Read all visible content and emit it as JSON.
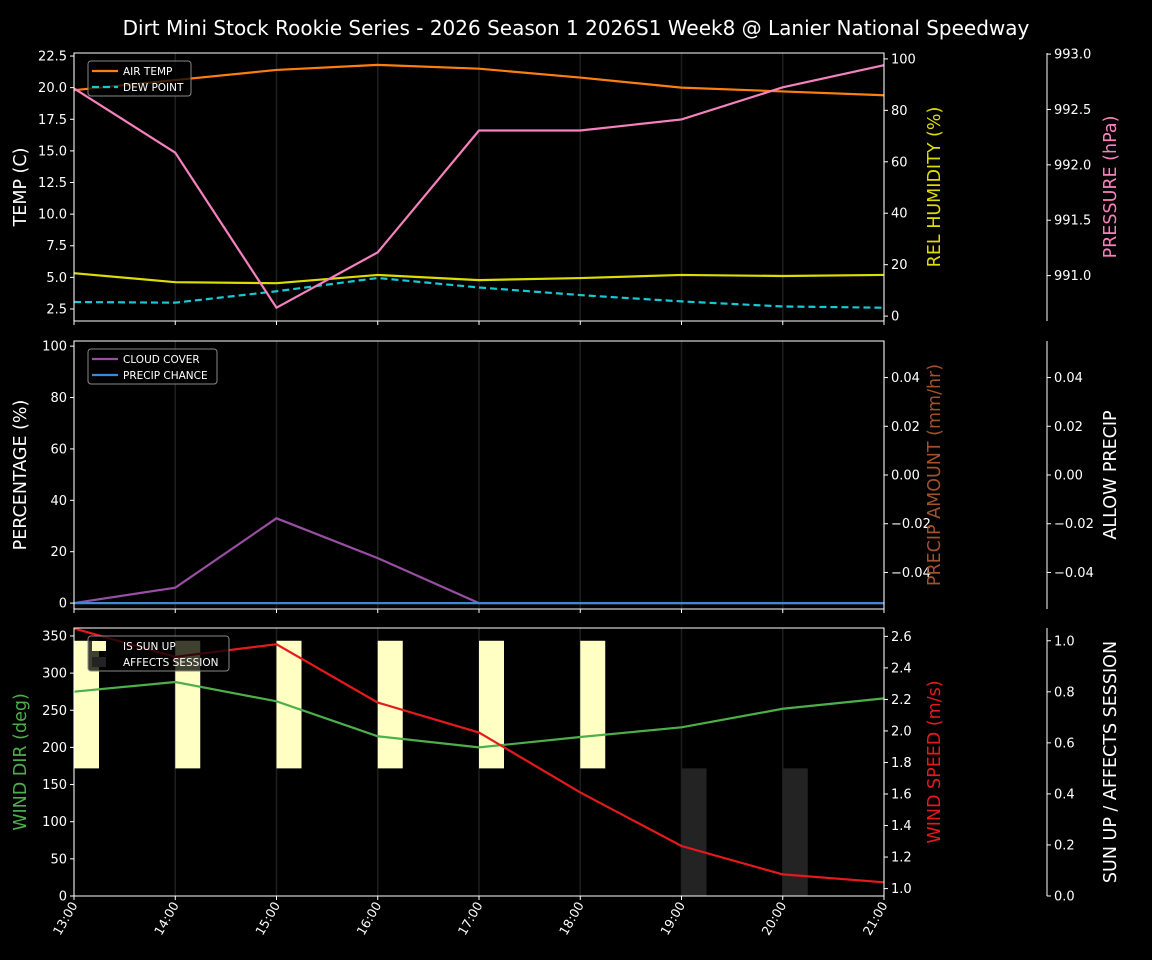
{
  "title": "Dirt Mini Stock Rookie Series - 2026 Season 1 2026S1 Week8 @ Lanier National Speedway",
  "x_tick_labels": [
    "13:00",
    "14:00",
    "15:00",
    "16:00",
    "17:00",
    "18:00",
    "19:00",
    "20:00",
    "21:00"
  ],
  "chart_data": [
    {
      "type": "line",
      "x": [
        "13:00",
        "14:00",
        "15:00",
        "16:00",
        "17:00",
        "18:00",
        "19:00",
        "20:00",
        "21:00"
      ],
      "grid": "vertical",
      "legend_placement": "top-left",
      "axes": {
        "left": {
          "label": "TEMP (C)",
          "label_color": "#ffffff",
          "ylim": [
            1.55,
            22.74
          ],
          "tick_labels": [
            "2.5",
            "5.0",
            "7.5",
            "10.0",
            "12.5",
            "15.0",
            "17.5",
            "20.0",
            "22.5"
          ]
        },
        "right": {
          "label": "REL HUMIDITY (%)",
          "label_color": "#dddd00",
          "ylim": [
            -1.9,
            102.3
          ],
          "tick_labels": [
            "0",
            "20",
            "40",
            "60",
            "80",
            "100"
          ]
        },
        "right2": {
          "label": "PRESSURE (hPa)",
          "label_color": "#f781bf",
          "ylim": [
            990.59,
            993.01
          ],
          "tick_labels": [
            "991.0",
            "991.5",
            "992.0",
            "992.5",
            "993.0"
          ]
        }
      },
      "series": [
        {
          "name": "AIR TEMP",
          "axis": "left",
          "color": "#ff7f0e",
          "style": "solid",
          "legend": true,
          "values": [
            19.8,
            20.6,
            21.4,
            21.8,
            21.5,
            20.8,
            20.0,
            19.7,
            19.4
          ]
        },
        {
          "name": "DEW POINT",
          "axis": "left",
          "color": "#17c9d4",
          "style": "dashed",
          "legend": true,
          "values": [
            3.05,
            3.0,
            3.9,
            4.95,
            4.2,
            3.6,
            3.1,
            2.7,
            2.6
          ]
        },
        {
          "axis": "right",
          "color": "#dddd00",
          "style": "solid",
          "legend": false,
          "values": [
            16.7,
            13.2,
            12.8,
            16.0,
            14.0,
            14.8,
            16.0,
            15.6,
            16.0
          ]
        },
        {
          "axis": "right2",
          "color": "#f781bf",
          "style": "solid",
          "legend": false,
          "values": [
            992.69,
            992.11,
            990.71,
            991.21,
            992.31,
            992.31,
            992.41,
            992.7,
            992.9
          ]
        }
      ]
    },
    {
      "type": "line",
      "x": [
        "13:00",
        "14:00",
        "15:00",
        "16:00",
        "17:00",
        "18:00",
        "19:00",
        "20:00",
        "21:00"
      ],
      "grid": "vertical",
      "legend_placement": "top-left",
      "axes": {
        "left": {
          "label": "PERCENTAGE (%)",
          "label_color": "#ffffff",
          "ylim": [
            -2.3,
            102
          ],
          "tick_labels": [
            "0",
            "20",
            "40",
            "60",
            "80",
            "100"
          ]
        },
        "right": {
          "label": "PRECIP AMOUNT (mm/hr)",
          "label_color": "#a0522d",
          "ylim": [
            -0.055,
            0.055
          ],
          "tick_labels": [
            "−0.04",
            "−0.02",
            "0.00",
            "0.02",
            "0.04"
          ]
        },
        "right2": {
          "label": "ALLOW PRECIP",
          "label_color": "#ffffff",
          "ylim": [
            -0.055,
            0.055
          ],
          "tick_labels": [
            "−0.04",
            "−0.02",
            "0.00",
            "0.02",
            "0.04"
          ]
        }
      },
      "series": [
        {
          "name": "CLOUD COVER",
          "axis": "left",
          "color": "#984ea3",
          "style": "solid",
          "legend": true,
          "values": [
            0,
            6,
            33,
            17.5,
            0,
            0,
            0,
            0,
            0
          ]
        },
        {
          "name": "PRECIP CHANCE",
          "axis": "left",
          "color": "#3f88d6",
          "style": "solid",
          "legend": true,
          "values": [
            0,
            0,
            0,
            0,
            0,
            0,
            0,
            0,
            0
          ]
        }
      ]
    },
    {
      "type": "line",
      "x": [
        "13:00",
        "14:00",
        "15:00",
        "16:00",
        "17:00",
        "18:00",
        "19:00",
        "20:00",
        "21:00"
      ],
      "grid": "vertical",
      "legend_placement": "top-left",
      "axes": {
        "left": {
          "label": "WIND DIR (deg)",
          "label_color": "#4daf4a",
          "ylim": [
            0,
            360.7
          ],
          "tick_labels": [
            "0",
            "50",
            "100",
            "150",
            "200",
            "250",
            "300",
            "350"
          ]
        },
        "right": {
          "label": "WIND SPEED (m/s)",
          "label_color": "#e41a1c",
          "ylim": [
            0.953,
            2.653
          ],
          "tick_labels": [
            "1.0",
            "1.2",
            "1.4",
            "1.6",
            "1.8",
            "2.0",
            "2.2",
            "2.4",
            "2.6"
          ]
        },
        "right2": {
          "label": "SUN UP / AFFECTS SESSION",
          "label_color": "#ffffff",
          "ylim": [
            0,
            1.05
          ],
          "tick_labels": [
            "0.0",
            "0.2",
            "0.4",
            "0.6",
            "0.8",
            "1.0"
          ]
        }
      },
      "bars": [
        {
          "name": "IS SUN UP",
          "axis": "right2",
          "color": "#ffffc4",
          "bottom": 0.5,
          "height": 0.5,
          "values": [
            1,
            1,
            1,
            1,
            1,
            1,
            0,
            0,
            0
          ]
        },
        {
          "name": "AFFECTS SESSION",
          "axis": "right2",
          "color": "#232323",
          "bottom": 0,
          "height": 0.5,
          "values": [
            0,
            0,
            0,
            0,
            0,
            0,
            1,
            1,
            0
          ]
        }
      ],
      "series": [
        {
          "axis": "left",
          "color": "#4daf4a",
          "style": "solid",
          "legend": false,
          "values": [
            275,
            288,
            262,
            215,
            200,
            214,
            227,
            252,
            266
          ]
        },
        {
          "axis": "right",
          "color": "#e41a1c",
          "style": "solid",
          "legend": false,
          "values": [
            2.65,
            2.47,
            2.55,
            2.18,
            1.99,
            1.61,
            1.27,
            1.09,
            1.04
          ]
        }
      ]
    }
  ]
}
